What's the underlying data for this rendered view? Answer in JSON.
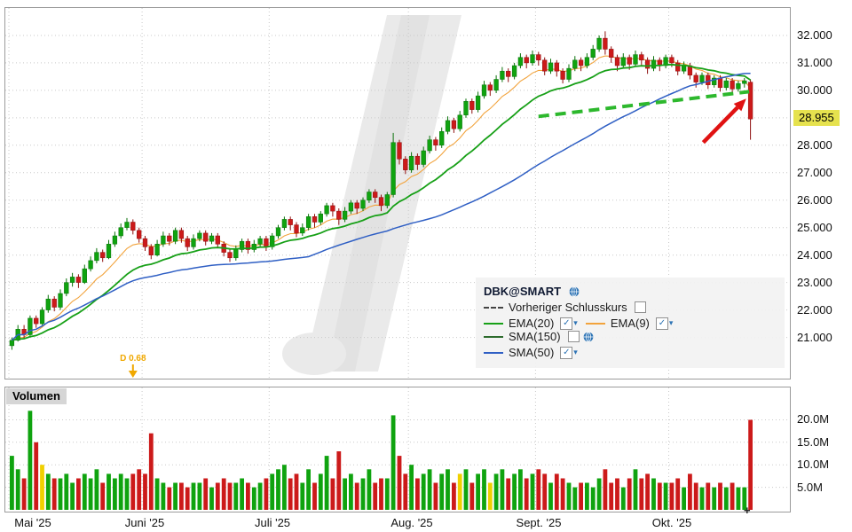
{
  "icons": {
    "check": "✓",
    "chevron_down": "▾"
  },
  "colors": {
    "up": "#0fa30f",
    "up_stroke": "#0a720a",
    "down": "#cc1a1a",
    "down_stroke": "#8f1010",
    "vol_up": "#0fa30f",
    "vol_down": "#cc1a1a",
    "vol_highlight": "#f0d000",
    "grid": "#c9c9c9",
    "watermark": "#eaeaea",
    "watermark_dark": "#e2e2e2",
    "trendline": "#2db82d",
    "arrow": "#e01212",
    "last_price_bg": "#e6e24e",
    "dividend": "#f0a800"
  },
  "legend": {
    "title": "DBK@SMART",
    "items": [
      {
        "label": "Vorheriger Schlusskurs",
        "color": "#444444",
        "dash": true
      },
      {
        "label": "EMA(20)",
        "color": "#17a017"
      },
      {
        "label": "EMA(9)",
        "color": "#f2a33c"
      },
      {
        "label": "SMA(150)",
        "color": "#2d6b2d"
      },
      {
        "label": "SMA(50)",
        "color": "#2f5fc4"
      }
    ]
  },
  "chart_data": {
    "type": "candlestick",
    "symbol": "DBK@SMART",
    "x_axis": {
      "end_marker": "+",
      "months": [
        {
          "label": "Mai '25",
          "index": 0
        },
        {
          "label": "Juni '25",
          "index": 22
        },
        {
          "label": "Juli '25",
          "index": 43
        },
        {
          "label": "Aug. '25",
          "index": 66
        },
        {
          "label": "Sept. '25",
          "index": 87
        },
        {
          "label": "Okt. '25",
          "index": 109
        }
      ]
    },
    "price_panel": {
      "domain": [
        19.5,
        33.0
      ],
      "grid_values": [
        21,
        22,
        23,
        24,
        25,
        26,
        27,
        28,
        29,
        30,
        31,
        32
      ],
      "y_ticks": [
        {
          "label": "32.000",
          "value": 32
        },
        {
          "label": "31.000",
          "value": 31
        },
        {
          "label": "30.000",
          "value": 30
        },
        {
          "label": "28.000",
          "value": 28
        },
        {
          "label": "27.000",
          "value": 27
        },
        {
          "label": "26.000",
          "value": 26
        },
        {
          "label": "25.000",
          "value": 25
        },
        {
          "label": "24.000",
          "value": 24
        },
        {
          "label": "23.000",
          "value": 23
        },
        {
          "label": "22.000",
          "value": 22
        },
        {
          "label": "21.000",
          "value": 21
        }
      ],
      "last_price": {
        "label": "28.955",
        "value": 28.955
      },
      "moving_averages": [
        {
          "label": "EMA(9)",
          "type": "ema",
          "period": 9,
          "color": "#f2a33c",
          "width": 1.1,
          "under": true,
          "visible": true
        },
        {
          "label": "EMA(20)",
          "type": "ema",
          "period": 20,
          "color": "#17a017",
          "width": 1.8,
          "under": false,
          "visible": true
        },
        {
          "label": "SMA(50)",
          "type": "sma",
          "period": 50,
          "color": "#2f5fc4",
          "width": 1.5,
          "under": false,
          "visible": true
        },
        {
          "label": "SMA(150)",
          "type": "sma",
          "period": 150,
          "color": "#2d6b2d",
          "width": 1.2,
          "under": false,
          "visible": false
        }
      ],
      "trendline": {
        "x1": 87,
        "y1": 29.05,
        "x2": 121.8,
        "y2": 29.95
      },
      "arrow": {
        "x1": 114.2,
        "y1": 28.1,
        "x2": 121.3,
        "y2": 29.7
      },
      "dividend_marker": {
        "label": "D 0.68",
        "index": 20
      },
      "candles": [
        [
          20.7,
          21.0,
          20.55,
          20.9
        ],
        [
          20.9,
          21.45,
          20.85,
          21.3
        ],
        [
          21.3,
          21.45,
          20.95,
          21.1
        ],
        [
          21.1,
          21.8,
          21.05,
          21.7
        ],
        [
          21.7,
          21.8,
          21.35,
          21.5
        ],
        [
          21.5,
          22.1,
          21.45,
          22.0
        ],
        [
          22.0,
          22.55,
          21.9,
          22.4
        ],
        [
          22.4,
          22.5,
          21.95,
          22.1
        ],
        [
          22.1,
          22.75,
          22.0,
          22.6
        ],
        [
          22.6,
          23.15,
          22.5,
          23.0
        ],
        [
          23.0,
          23.35,
          22.85,
          23.2
        ],
        [
          23.2,
          23.3,
          22.8,
          23.0
        ],
        [
          23.0,
          23.65,
          22.95,
          23.5
        ],
        [
          23.5,
          23.95,
          23.4,
          23.8
        ],
        [
          23.8,
          24.25,
          23.7,
          24.1
        ],
        [
          24.1,
          24.2,
          23.75,
          23.9
        ],
        [
          23.9,
          24.55,
          23.85,
          24.4
        ],
        [
          24.4,
          24.85,
          24.3,
          24.7
        ],
        [
          24.7,
          25.15,
          24.6,
          25.0
        ],
        [
          25.0,
          25.35,
          24.9,
          25.2
        ],
        [
          25.2,
          25.3,
          24.75,
          24.9
        ],
        [
          24.9,
          25.0,
          24.45,
          24.6
        ],
        [
          24.6,
          24.7,
          24.15,
          24.3
        ],
        [
          24.3,
          24.4,
          23.85,
          24.0
        ],
        [
          24.0,
          24.55,
          23.95,
          24.4
        ],
        [
          24.4,
          24.85,
          24.3,
          24.7
        ],
        [
          24.7,
          24.8,
          24.35,
          24.5
        ],
        [
          24.5,
          25.0,
          24.4,
          24.9
        ],
        [
          24.9,
          25.0,
          24.45,
          24.6
        ],
        [
          24.6,
          24.7,
          24.15,
          24.3
        ],
        [
          24.3,
          24.75,
          24.2,
          24.6
        ],
        [
          24.6,
          24.9,
          24.5,
          24.8
        ],
        [
          24.8,
          24.9,
          24.35,
          24.5
        ],
        [
          24.5,
          24.8,
          24.4,
          24.7
        ],
        [
          24.7,
          24.8,
          24.25,
          24.4
        ],
        [
          24.4,
          24.5,
          23.95,
          24.1
        ],
        [
          24.1,
          24.2,
          23.75,
          23.9
        ],
        [
          23.9,
          24.35,
          23.8,
          24.2
        ],
        [
          24.2,
          24.6,
          24.1,
          24.5
        ],
        [
          24.5,
          24.6,
          24.05,
          24.2
        ],
        [
          24.2,
          24.55,
          24.1,
          24.4
        ],
        [
          24.4,
          24.7,
          24.3,
          24.6
        ],
        [
          24.6,
          24.7,
          24.15,
          24.3
        ],
        [
          24.3,
          24.8,
          24.2,
          24.7
        ],
        [
          24.7,
          25.1,
          24.6,
          25.0
        ],
        [
          25.0,
          25.4,
          24.9,
          25.3
        ],
        [
          25.3,
          25.4,
          24.9,
          25.1
        ],
        [
          25.1,
          25.2,
          24.65,
          24.8
        ],
        [
          24.8,
          25.15,
          24.7,
          25.0
        ],
        [
          25.0,
          25.5,
          24.9,
          25.4
        ],
        [
          25.4,
          25.5,
          25.0,
          25.2
        ],
        [
          25.2,
          25.6,
          25.1,
          25.5
        ],
        [
          25.5,
          25.9,
          25.4,
          25.8
        ],
        [
          25.8,
          25.9,
          25.4,
          25.6
        ],
        [
          25.6,
          25.7,
          25.1,
          25.3
        ],
        [
          25.3,
          25.75,
          25.2,
          25.6
        ],
        [
          25.6,
          26.0,
          25.5,
          25.9
        ],
        [
          25.9,
          26.0,
          25.5,
          25.7
        ],
        [
          25.7,
          26.1,
          25.6,
          26.0
        ],
        [
          26.0,
          26.4,
          25.9,
          26.3
        ],
        [
          26.3,
          26.4,
          25.9,
          26.1
        ],
        [
          26.1,
          26.2,
          25.6,
          25.8
        ],
        [
          25.8,
          26.3,
          25.7,
          26.2
        ],
        [
          26.2,
          28.45,
          26.1,
          28.1
        ],
        [
          28.1,
          28.2,
          27.3,
          27.5
        ],
        [
          27.5,
          27.6,
          26.95,
          27.1
        ],
        [
          27.1,
          27.75,
          27.0,
          27.6
        ],
        [
          27.6,
          27.7,
          27.1,
          27.3
        ],
        [
          27.3,
          27.95,
          27.2,
          27.8
        ],
        [
          27.8,
          28.35,
          27.7,
          28.2
        ],
        [
          28.2,
          28.3,
          27.8,
          28.0
        ],
        [
          28.0,
          28.65,
          27.9,
          28.5
        ],
        [
          28.5,
          29.05,
          28.4,
          28.9
        ],
        [
          28.9,
          29.0,
          28.45,
          28.6
        ],
        [
          28.6,
          29.25,
          28.5,
          29.1
        ],
        [
          29.1,
          29.7,
          29.0,
          29.6
        ],
        [
          29.6,
          29.7,
          29.15,
          29.3
        ],
        [
          29.3,
          29.95,
          29.2,
          29.8
        ],
        [
          29.8,
          30.35,
          29.7,
          30.2
        ],
        [
          30.2,
          30.3,
          29.8,
          30.0
        ],
        [
          30.0,
          30.55,
          29.9,
          30.4
        ],
        [
          30.4,
          30.85,
          30.3,
          30.7
        ],
        [
          30.7,
          30.8,
          30.3,
          30.5
        ],
        [
          30.5,
          31.0,
          30.4,
          30.9
        ],
        [
          30.9,
          31.35,
          30.8,
          31.2
        ],
        [
          31.2,
          31.3,
          30.8,
          31.0
        ],
        [
          31.0,
          31.45,
          30.9,
          31.3
        ],
        [
          31.3,
          31.4,
          30.9,
          31.1
        ],
        [
          31.1,
          31.2,
          30.55,
          30.7
        ],
        [
          30.7,
          31.15,
          30.6,
          31.0
        ],
        [
          31.0,
          31.1,
          30.5,
          30.7
        ],
        [
          30.7,
          30.8,
          30.25,
          30.4
        ],
        [
          30.4,
          30.95,
          30.3,
          30.8
        ],
        [
          30.8,
          31.25,
          30.7,
          31.1
        ],
        [
          31.1,
          31.2,
          30.7,
          30.9
        ],
        [
          30.9,
          31.35,
          30.8,
          31.2
        ],
        [
          31.2,
          31.65,
          31.1,
          31.5
        ],
        [
          31.5,
          32.0,
          31.4,
          31.9
        ],
        [
          31.9,
          32.15,
          31.3,
          31.5
        ],
        [
          31.5,
          31.6,
          31.0,
          31.2
        ],
        [
          31.2,
          31.3,
          30.7,
          30.9
        ],
        [
          30.9,
          31.35,
          30.8,
          31.2
        ],
        [
          31.2,
          31.3,
          30.75,
          30.95
        ],
        [
          30.95,
          31.45,
          30.9,
          31.3
        ],
        [
          31.3,
          31.4,
          30.9,
          31.1
        ],
        [
          31.1,
          31.2,
          30.6,
          30.8
        ],
        [
          30.8,
          31.25,
          30.7,
          31.1
        ],
        [
          31.1,
          31.2,
          30.7,
          30.9
        ],
        [
          30.9,
          31.3,
          30.8,
          31.2
        ],
        [
          31.2,
          31.3,
          30.85,
          31.0
        ],
        [
          31.0,
          31.1,
          30.55,
          30.7
        ],
        [
          30.7,
          31.05,
          30.6,
          30.9
        ],
        [
          30.9,
          31.0,
          30.4,
          30.55
        ],
        [
          30.55,
          30.65,
          30.1,
          30.3
        ],
        [
          30.3,
          30.65,
          30.2,
          30.55
        ],
        [
          30.55,
          30.65,
          30.05,
          30.2
        ],
        [
          30.2,
          30.55,
          30.1,
          30.45
        ],
        [
          30.45,
          30.55,
          29.95,
          30.1
        ],
        [
          30.1,
          30.45,
          30.0,
          30.35
        ],
        [
          30.35,
          30.45,
          29.9,
          30.05
        ],
        [
          30.05,
          30.35,
          29.95,
          30.25
        ],
        [
          30.25,
          30.45,
          30.1,
          30.35
        ],
        [
          30.3,
          30.4,
          28.2,
          28.955
        ]
      ]
    },
    "volume_panel": {
      "label": "Volumen",
      "domain": [
        0,
        26
      ],
      "y_ticks": [
        {
          "label": "20.0M",
          "value": 20
        },
        {
          "label": "15.0M",
          "value": 15
        },
        {
          "label": "10.0M",
          "value": 10
        },
        {
          "label": "5.0M",
          "value": 5
        }
      ],
      "highlight_indices": [
        5,
        74,
        79
      ],
      "volumes": [
        12,
        9,
        7,
        22,
        15,
        10,
        8,
        7,
        7,
        8,
        6,
        7,
        8,
        7,
        9,
        6,
        8,
        7,
        8,
        7,
        8,
        9,
        8,
        17,
        7,
        6,
        5,
        6,
        6,
        5,
        6,
        6,
        7,
        5,
        6,
        7,
        6,
        6,
        7,
        6,
        5,
        6,
        7,
        8,
        9,
        10,
        7,
        8,
        6,
        9,
        6,
        8,
        12,
        7,
        13,
        7,
        8,
        6,
        7,
        9,
        6,
        7,
        7,
        21,
        12,
        8,
        10,
        7,
        8,
        9,
        6,
        8,
        9,
        6,
        8,
        9,
        6,
        8,
        9,
        6,
        8,
        9,
        7,
        8,
        9,
        7,
        8,
        9,
        8,
        6,
        8,
        7,
        6,
        5,
        6,
        6,
        5,
        7,
        9,
        6,
        7,
        5,
        7,
        9,
        7,
        8,
        7,
        6,
        6,
        6,
        7,
        5,
        8,
        6,
        5,
        6,
        5,
        6,
        5,
        6,
        5,
        5,
        20
      ]
    }
  }
}
